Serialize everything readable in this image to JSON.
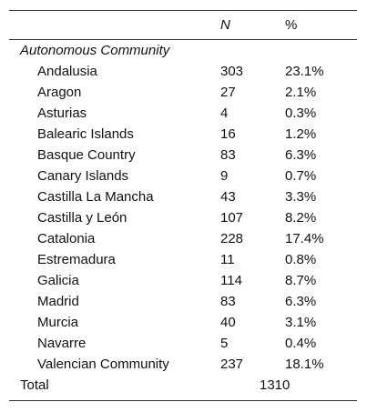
{
  "table": {
    "header": [
      "N",
      "%"
    ],
    "section": "Autonomous Community",
    "rows": [
      [
        "Andalusia",
        "303",
        "23.1%"
      ],
      [
        "Aragon",
        "27",
        "2.1%"
      ],
      [
        "Asturias",
        "4",
        "0.3%"
      ],
      [
        "Balearic Islands",
        "16",
        "1.2%"
      ],
      [
        "Basque Country",
        "83",
        "6.3%"
      ],
      [
        "Canary Islands",
        "9",
        "0.7%"
      ],
      [
        "Castilla La Mancha",
        "43",
        "3.3%"
      ],
      [
        "Castilla y León",
        "107",
        "8.2%"
      ],
      [
        "Catalonia",
        "228",
        "17.4%"
      ],
      [
        "Estremadura",
        "11",
        "0.8%"
      ],
      [
        "Galicia",
        "114",
        "8.7%"
      ],
      [
        "Madrid",
        "83",
        "6.3%"
      ],
      [
        "Murcia",
        "40",
        "3.1%"
      ],
      [
        "Navarre",
        "5",
        "0.4%"
      ],
      [
        "Valencian Community",
        "237",
        "18.1%"
      ]
    ],
    "total": {
      "label": "Total",
      "value": "1310"
    }
  }
}
